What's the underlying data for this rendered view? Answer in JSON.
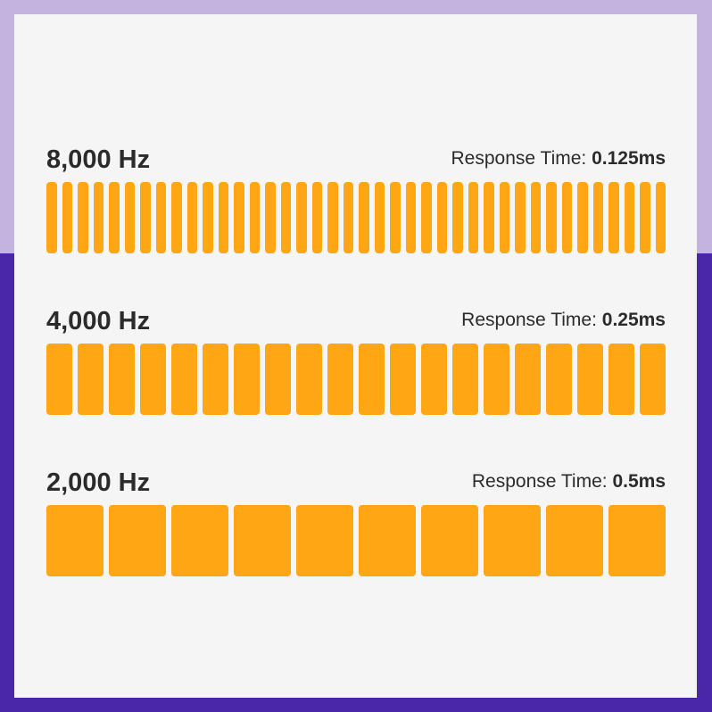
{
  "colors": {
    "background_top": "#c4b2df",
    "background_bottom": "#4a27a8",
    "panel": "#f5f5f5",
    "bar": "#fea613",
    "text": "#2b2b2b"
  },
  "rows": [
    {
      "frequency": "8,000 Hz",
      "response_label": "Response Time:",
      "response_value": "0.125ms",
      "pulses": 40
    },
    {
      "frequency": "4,000 Hz",
      "response_label": "Response Time:",
      "response_value": "0.25ms",
      "pulses": 20
    },
    {
      "frequency": "2,000 Hz",
      "response_label": "Response Time:",
      "response_value": "0.5ms",
      "pulses": 10
    }
  ]
}
